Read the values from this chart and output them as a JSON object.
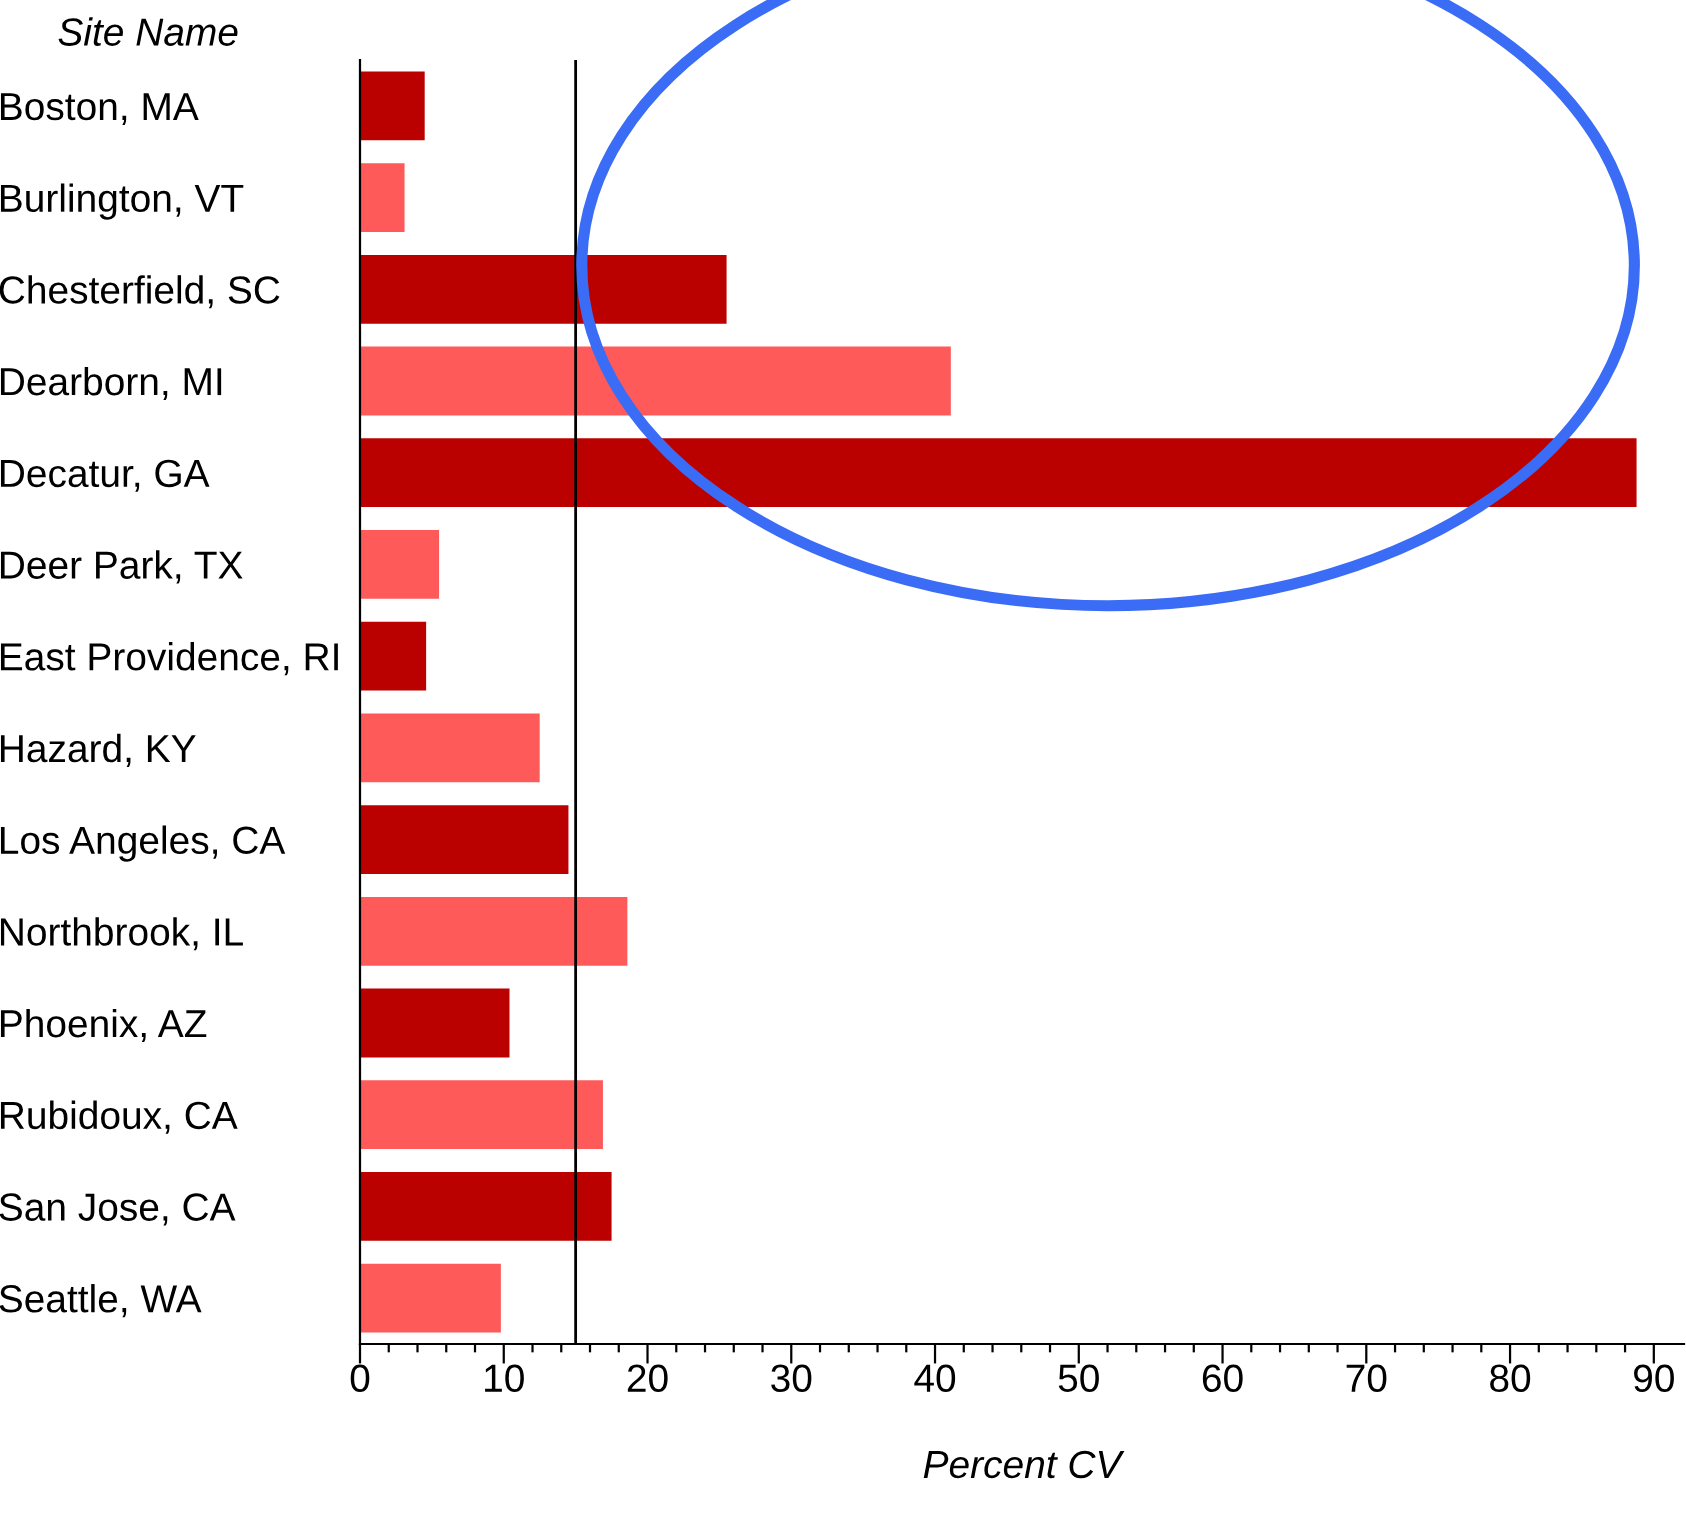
{
  "chart_data": {
    "type": "bar",
    "orientation": "horizontal",
    "xlabel": "Percent CV",
    "ylabel": "Site Name",
    "categories": [
      "Boston, MA",
      "Burlington, VT",
      "Chesterfield, SC",
      "Dearborn, MI",
      "Decatur, GA",
      "Deer Park, TX",
      "East Providence, RI",
      "Hazard, KY",
      "Los Angeles, CA",
      "Northbrook, IL",
      "Phoenix, AZ",
      "Rubidoux, CA",
      "San Jose, CA",
      "Seattle, WA"
    ],
    "values": [
      4.5,
      3.1,
      25.5,
      41.1,
      88.8,
      5.5,
      4.6,
      12.5,
      14.5,
      18.6,
      10.4,
      16.9,
      17.5,
      9.8
    ],
    "colors": [
      "#bb0000",
      "#ff5a5a",
      "#bb0000",
      "#ff5a5a",
      "#bb0000",
      "#ff5a5a",
      "#bb0000",
      "#ff5a5a",
      "#bb0000",
      "#ff5a5a",
      "#bb0000",
      "#ff5a5a",
      "#bb0000",
      "#ff5a5a"
    ],
    "xlim": [
      0,
      92.1
    ],
    "xticks": [
      0,
      {
        "value": 2,
        "label": null
      },
      {
        "value": 4,
        "label": null
      },
      {
        "value": 6,
        "label": null
      },
      {
        "value": 8,
        "label": null
      },
      10,
      {
        "value": 12,
        "label": null
      },
      {
        "value": 14,
        "label": null
      },
      {
        "value": 16,
        "label": null
      },
      {
        "value": 18,
        "label": null
      },
      20,
      {
        "value": 22,
        "label": null
      },
      {
        "value": 24,
        "label": null
      },
      {
        "value": 26,
        "label": null
      },
      {
        "value": 28,
        "label": null
      },
      30,
      {
        "value": 32,
        "label": null
      },
      {
        "value": 34,
        "label": null
      },
      {
        "value": 36,
        "label": null
      },
      {
        "value": 38,
        "label": null
      },
      40,
      {
        "value": 42,
        "label": null
      },
      {
        "value": 44,
        "label": null
      },
      {
        "value": 46,
        "label": null
      },
      {
        "value": 48,
        "label": null
      },
      50,
      {
        "value": 52,
        "label": null
      },
      {
        "value": 54,
        "label": null
      },
      {
        "value": 56,
        "label": null
      },
      {
        "value": 58,
        "label": null
      },
      60,
      {
        "value": 62,
        "label": null
      },
      {
        "value": 64,
        "label": null
      },
      {
        "value": 66,
        "label": null
      },
      {
        "value": 68,
        "label": null
      },
      70,
      {
        "value": 72,
        "label": null
      },
      {
        "value": 74,
        "label": null
      },
      {
        "value": 76,
        "label": null
      },
      {
        "value": 78,
        "label": null
      },
      80,
      {
        "value": 82,
        "label": null
      },
      {
        "value": 84,
        "label": null
      },
      {
        "value": 86,
        "label": null
      },
      {
        "value": 88,
        "label": null
      },
      90
    ],
    "ref_lines": [
      {
        "axis": "x",
        "value": 15,
        "color": "#000000"
      }
    ],
    "grid": false,
    "legend": false
  }
}
